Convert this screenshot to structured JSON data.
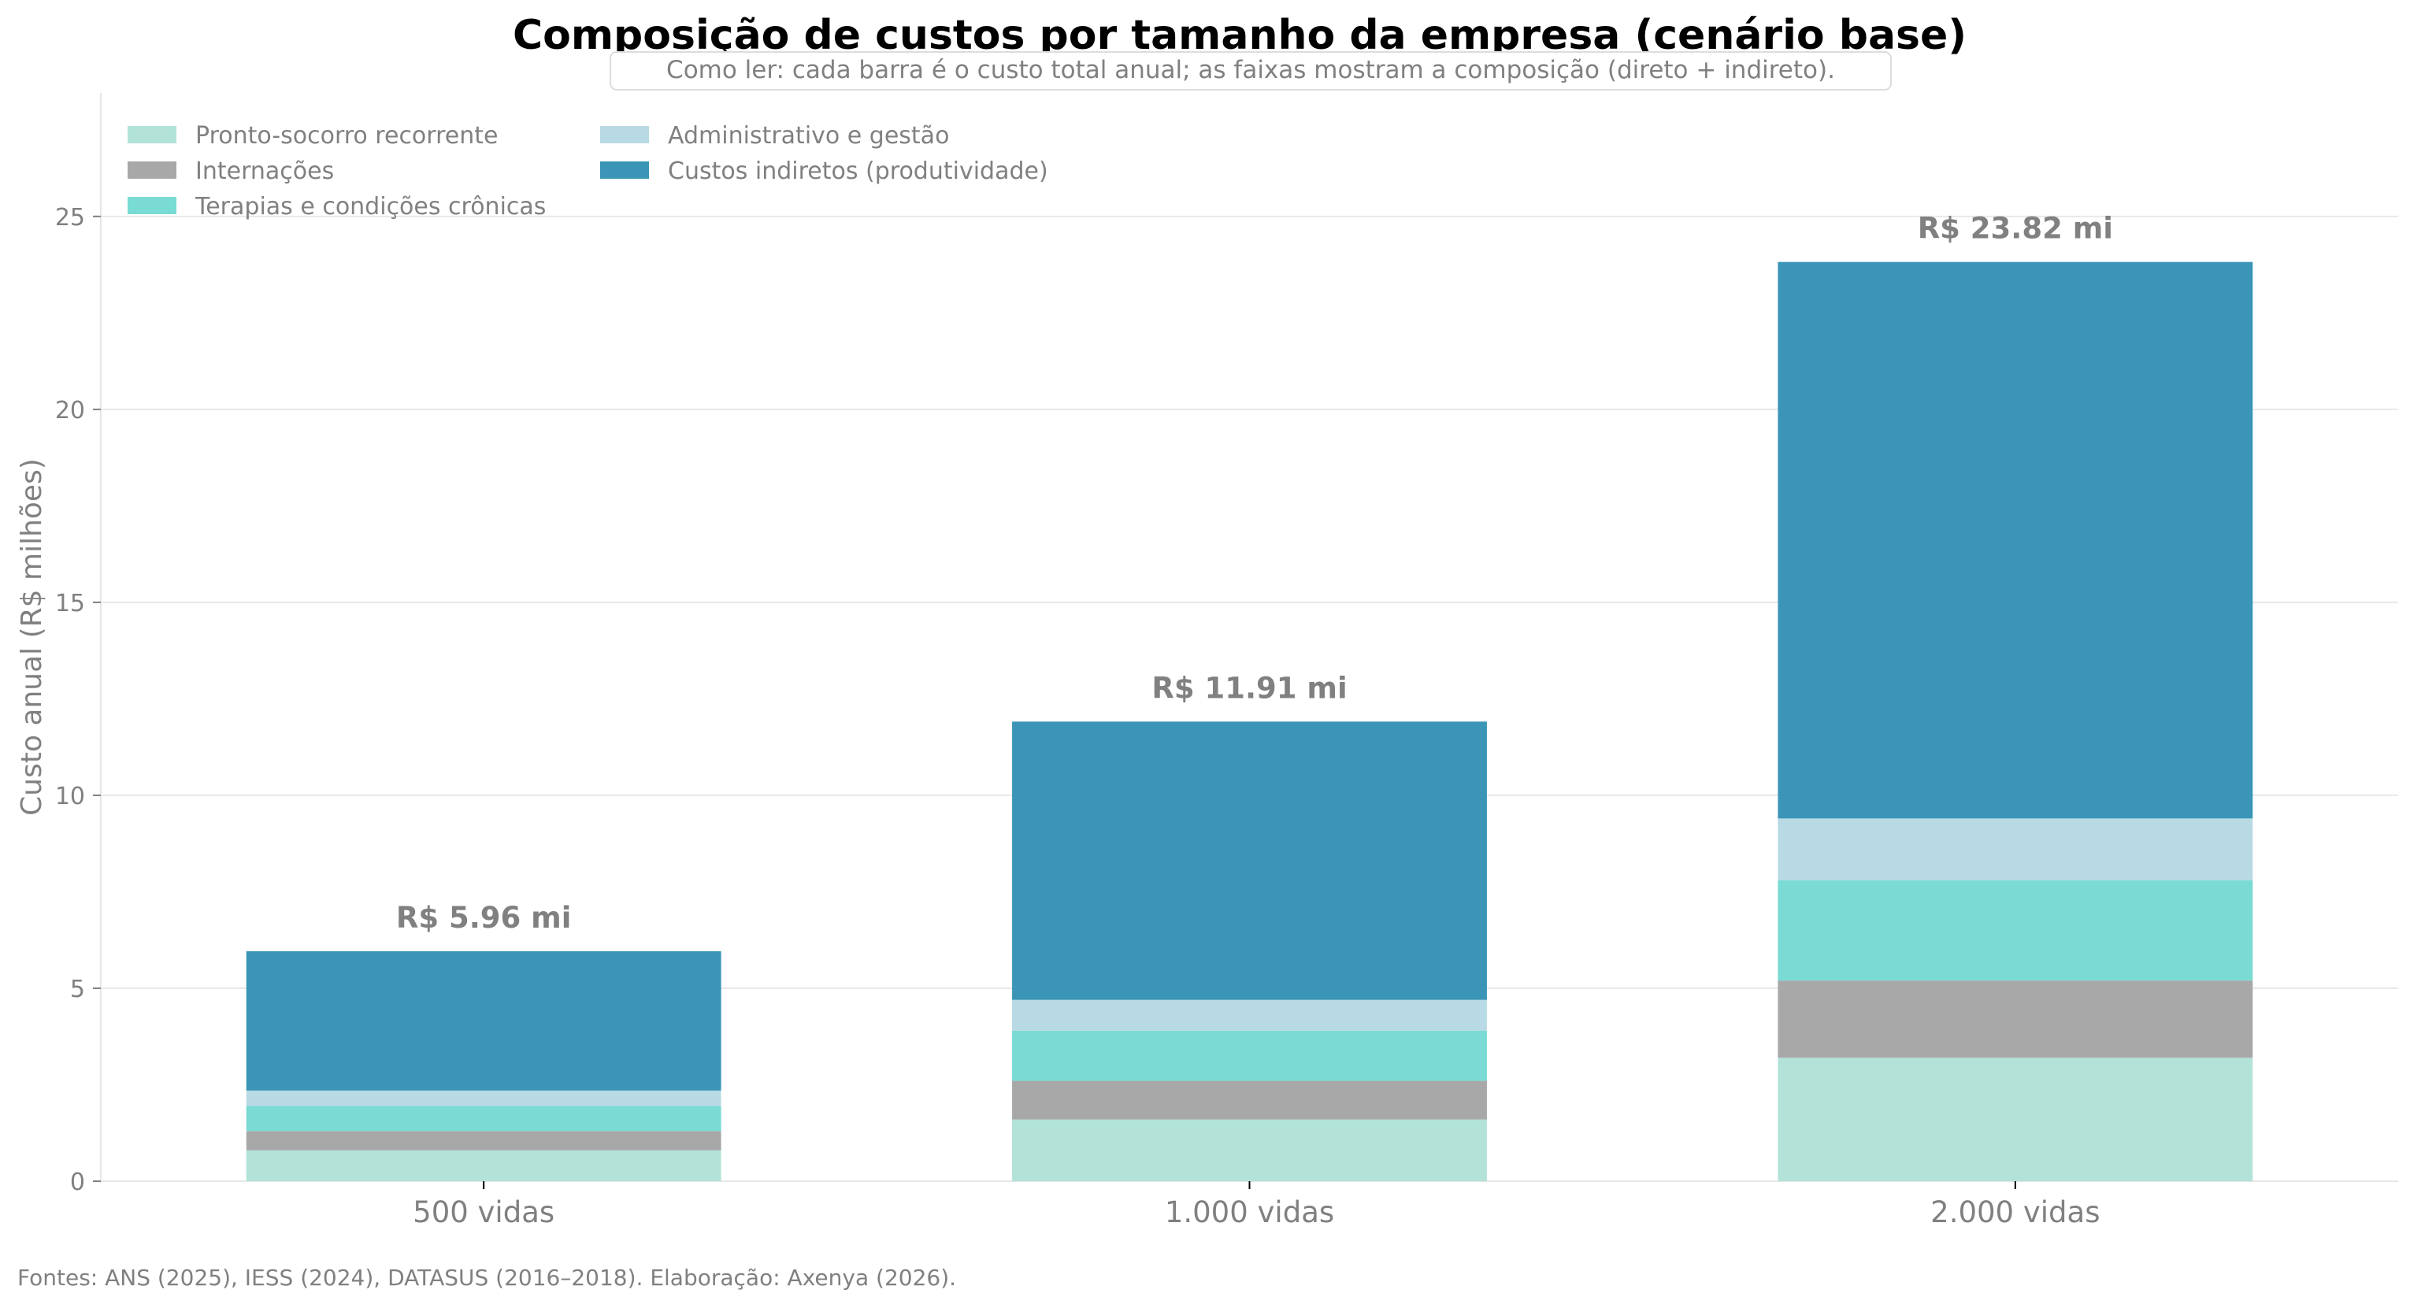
{
  "chart_data": {
    "type": "bar",
    "stacked": true,
    "title": "Composição de custos por tamanho da empresa (cenário base)",
    "subtitle": "Como ler: cada barra é o custo total anual; as faixas mostram a composição (direto + indireto).",
    "xlabel": "",
    "ylabel": "Custo anual (R$ milhões)",
    "ylim": [
      0,
      28.2
    ],
    "yticks": [
      0,
      5,
      10,
      15,
      20,
      25
    ],
    "grid": true,
    "legend_position": "top-left",
    "categories": [
      "500 vidas",
      "1.000 vidas",
      "2.000 vidas"
    ],
    "series": [
      {
        "name": "Pronto-socorro recorrente",
        "color": "#b2e2d8",
        "values": [
          0.8,
          1.6,
          3.2
        ]
      },
      {
        "name": "Internações",
        "color": "#a8a8a8",
        "values": [
          0.5,
          1.0,
          2.0
        ]
      },
      {
        "name": "Terapias e condições crônicas",
        "color": "#7adad4",
        "values": [
          0.65,
          1.3,
          2.6
        ]
      },
      {
        "name": "Administrativo e gestão",
        "color": "#b8dae4",
        "values": [
          0.4,
          0.8,
          1.6
        ]
      },
      {
        "name": "Custos indiretos (produtividade)",
        "color": "#3a95b6",
        "values": [
          3.61,
          7.21,
          14.42
        ]
      }
    ],
    "totals": [
      5.96,
      11.91,
      23.82
    ],
    "total_labels": [
      "R$ 5.96 mi",
      "R$ 11.91 mi",
      "R$ 23.82 mi"
    ]
  },
  "footer": "Fontes: ANS (2025), IESS (2024), DATASUS (2016–2018). Elaboração: Axenya (2026)."
}
